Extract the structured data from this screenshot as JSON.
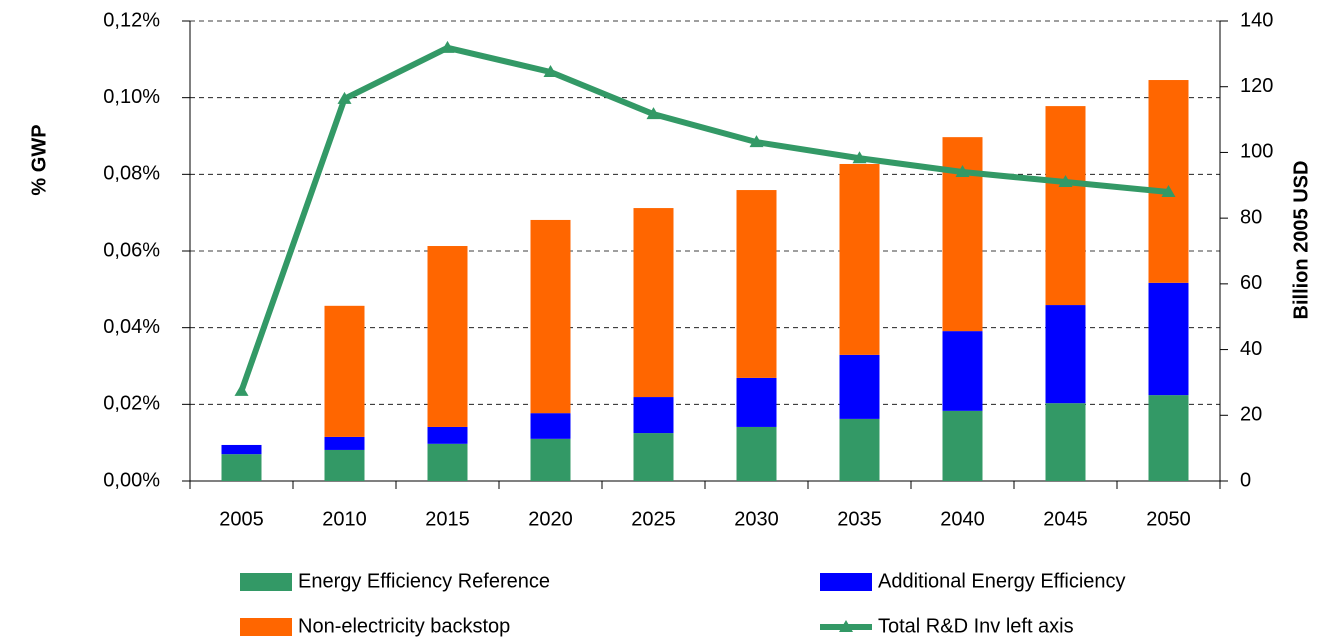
{
  "chart_data": {
    "type": "bar",
    "categories": [
      "2005",
      "2010",
      "2015",
      "2020",
      "2025",
      "2030",
      "2035",
      "2040",
      "2045",
      "2050"
    ],
    "stacked": true,
    "series": [
      {
        "name": "Energy Efficiency Reference",
        "color": "#339966",
        "values": [
          0.007,
          0.0081,
          0.0097,
          0.011,
          0.0125,
          0.0141,
          0.0162,
          0.0183,
          0.0203,
          0.0224
        ]
      },
      {
        "name": "Additional Energy Efficiency",
        "color": "#0000ff",
        "values": [
          0.0024,
          0.0034,
          0.0044,
          0.0067,
          0.0094,
          0.0128,
          0.0167,
          0.0208,
          0.0256,
          0.0293
        ]
      },
      {
        "name": "Non-electricity backstop",
        "color": "#ff6600",
        "values": [
          null,
          0.0342,
          0.0472,
          0.0504,
          0.0493,
          0.049,
          0.0498,
          0.0506,
          0.0519,
          0.0529
        ]
      },
      {
        "name": "Total R&D Inv left axis",
        "color": "#339966",
        "type": "line",
        "values": [
          0.0235,
          0.0997,
          0.113,
          0.1067,
          0.0957,
          0.0884,
          0.0842,
          0.0806,
          0.078,
          0.0754
        ]
      }
    ],
    "ylabel": "% GWP",
    "y2label": "Billion 2005 USD",
    "ylim": [
      0,
      0.12
    ],
    "yticks": [
      {
        "value": 0,
        "label": "0,00%"
      },
      {
        "value": 0.02,
        "label": "0,02%"
      },
      {
        "value": 0.04,
        "label": "0,04%"
      },
      {
        "value": 0.06,
        "label": "0,06%"
      },
      {
        "value": 0.08,
        "label": "0,08%"
      },
      {
        "value": 0.1,
        "label": "0,10%"
      },
      {
        "value": 0.12,
        "label": "0,12%"
      }
    ],
    "y2lim": [
      0,
      140
    ],
    "y2ticks": [
      0,
      20,
      40,
      60,
      80,
      100,
      120,
      140
    ],
    "grid": true,
    "legend": "bottom"
  }
}
